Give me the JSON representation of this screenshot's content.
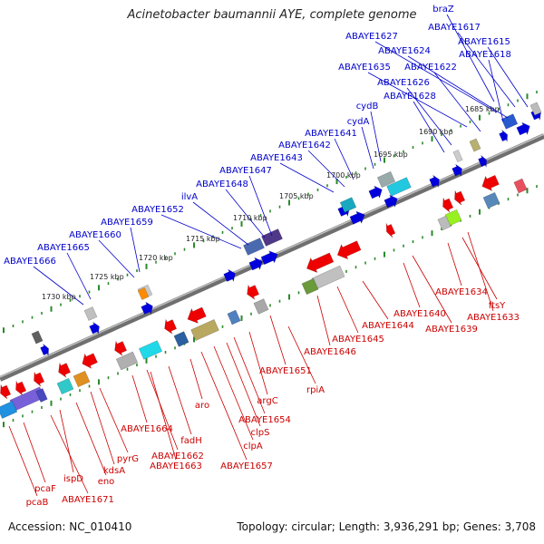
{
  "title": "Acinetobacter baumannii AYE, complete genome",
  "footer": {
    "accession": "Accession: NC_010410",
    "stats": "Topology: circular; Length: 3,936,291 bp; Genes: 3,708"
  },
  "colors": {
    "forward_label": "#0000cc",
    "reverse_label": "#cc0000",
    "backbone": "#888888",
    "ticks": "#2a8a2a"
  },
  "scale_marks": [
    "1730 kbp",
    "1725 kbp",
    "1720 kbp",
    "1715 kbp",
    "1710 kbp",
    "1705 kbp",
    "1700 kbp",
    "1695 kbp",
    "1690 kbp",
    "1685 kbp"
  ],
  "forward_labels": [
    "braZ",
    "ABAYE1617",
    "ABAYE1627",
    "ABAYE1615",
    "ABAYE1624",
    "ABAYE1618",
    "ABAYE1635",
    "ABAYE1622",
    "ABAYE1626",
    "ABAYE1628",
    "cydB",
    "cydA",
    "ABAYE1641",
    "ABAYE1642",
    "ABAYE1643",
    "ABAYE1647",
    "ABAYE1648",
    "ilvA",
    "ABAYE1652",
    "ABAYE1659",
    "ABAYE1660",
    "ABAYE1665",
    "ABAYE1666"
  ],
  "reverse_labels": [
    "ABAYE1634",
    "ftsY",
    "ABAYE1633",
    "ABAYE1640",
    "ABAYE1639",
    "ABAYE1644",
    "ABAYE1645",
    "ABAYE1646",
    "ABAYE1651",
    "rpiA",
    "argC",
    "ABAYE1654",
    "clpS",
    "clpA",
    "ABAYE1657",
    "aro",
    "fadH",
    "ABAYE1664",
    "ABAYE1662",
    "ABAYE1663",
    "pyrG",
    "kdsA",
    "eno",
    "ispD",
    "ABAYE1671",
    "pcaF",
    "pcaB"
  ]
}
